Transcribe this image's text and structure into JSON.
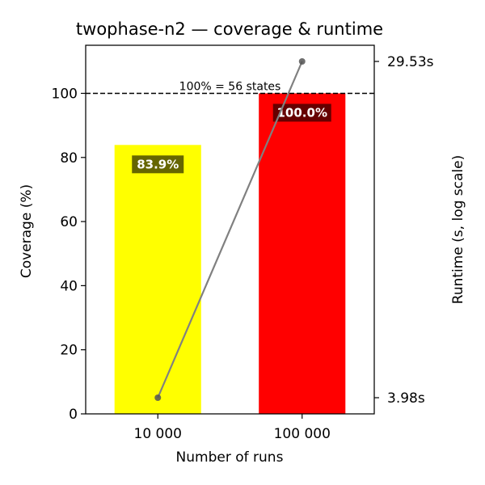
{
  "chart_data": {
    "type": "bar",
    "title": "twophase-n2 — coverage & runtime",
    "xlabel": "Number of runs",
    "ylabel": "Coverage (%)",
    "y2label": "Runtime (s, log scale)",
    "categories": [
      "10 000",
      "100 000"
    ],
    "ylim": [
      0,
      115
    ],
    "yticks": [
      0,
      20,
      40,
      60,
      80,
      100
    ],
    "grid": false,
    "series": [
      {
        "type": "bar",
        "values": [
          83.9,
          100.0
        ],
        "value_labels": [
          "83.9%",
          "100.0%"
        ],
        "colors": [
          "#ffff00",
          "#ff0000"
        ]
      },
      {
        "type": "line",
        "axis": "secondary",
        "scale": "log",
        "values": [
          3.98,
          29.53
        ],
        "color": "#808080"
      }
    ],
    "y2_tick_labels": [
      "3.98s",
      "29.53s"
    ],
    "reference_line": {
      "value": 100,
      "style": "dashed",
      "label": "100% = 56 states"
    }
  }
}
